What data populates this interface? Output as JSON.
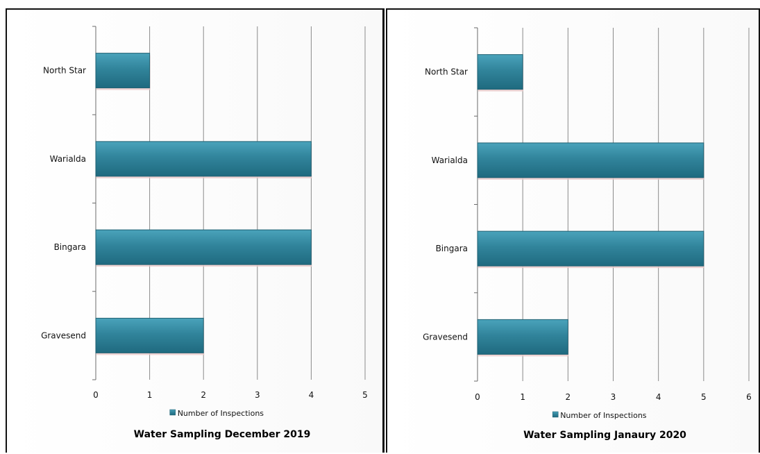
{
  "chart_data": [
    {
      "type": "bar",
      "orientation": "horizontal",
      "title": "Water Sampling December 2019",
      "categories": [
        "North Star",
        "Warialda",
        "Bingara",
        "Gravesend"
      ],
      "series": [
        {
          "name": "Number of Inspections",
          "values": [
            1,
            4,
            4,
            2
          ]
        }
      ],
      "xlim": [
        0,
        5
      ],
      "xticks": [
        "0",
        "1",
        "2",
        "3",
        "4",
        "5"
      ],
      "grid": true,
      "legend": "bottom",
      "bar_color": "#31849b"
    },
    {
      "type": "bar",
      "orientation": "horizontal",
      "title": "Water Sampling Janaury 2020",
      "categories": [
        "North Star",
        "Warialda",
        "Bingara",
        "Gravesend"
      ],
      "series": [
        {
          "name": "Number of Inspections",
          "values": [
            1,
            5,
            5,
            2
          ]
        }
      ],
      "xlim": [
        0,
        6
      ],
      "xticks": [
        "0",
        "1",
        "2",
        "3",
        "4",
        "5",
        "6"
      ],
      "grid": true,
      "legend": "bottom",
      "bar_color": "#31849b"
    }
  ]
}
